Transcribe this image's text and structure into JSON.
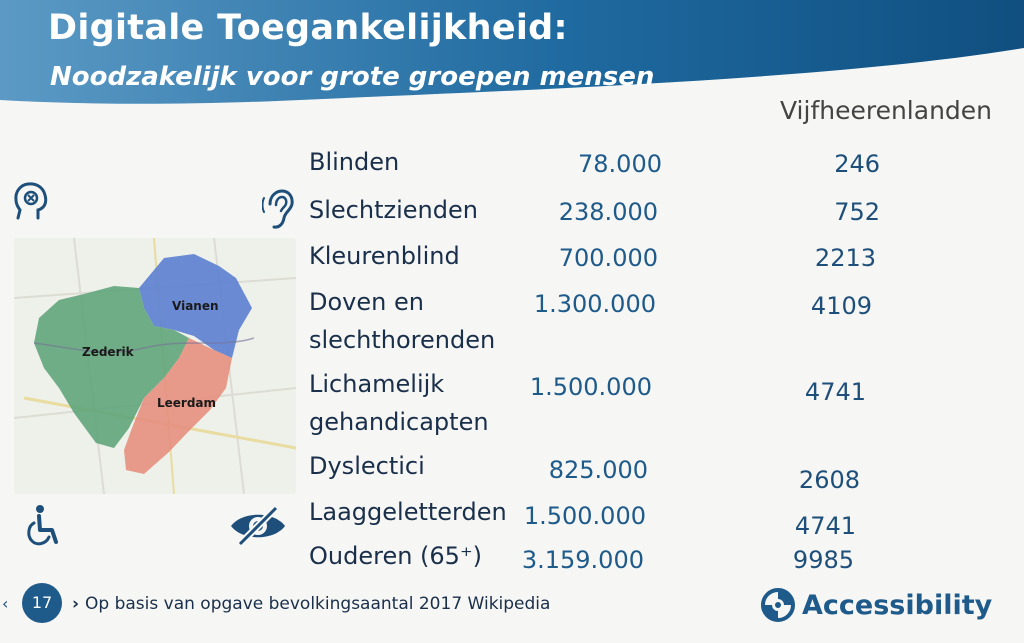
{
  "header": {
    "title": "Digitale Toegankelijkheid:",
    "subtitle": "Noodzakelijk voor grote groepen mensen",
    "region_column": "Vijfheerenlanden"
  },
  "map": {
    "labels": [
      "Vianen",
      "Zederik",
      "Leerdam"
    ],
    "colors": {
      "vianen": "#5b7fd0",
      "zederik": "#5fa57a",
      "leerdam": "#e58f80"
    }
  },
  "rows": [
    {
      "label_lines": [
        "Blinden"
      ],
      "national": "78.000",
      "region": "246"
    },
    {
      "label_lines": [
        "Slechtzienden"
      ],
      "national": "238.000",
      "region": "752"
    },
    {
      "label_lines": [
        "Kleurenblind"
      ],
      "national": "700.000",
      "region": "2213"
    },
    {
      "label_lines": [
        "Doven en",
        "slechthorenden"
      ],
      "national": "1.300.000",
      "region": "4109"
    },
    {
      "label_lines": [
        "Lichamelijk",
        "gehandicapten"
      ],
      "national": "1.500.000",
      "region": "4741"
    },
    {
      "label_lines": [
        "Dyslectici"
      ],
      "national": "825.000",
      "region": "2608"
    },
    {
      "label_lines": [
        "Laaggeletterden"
      ],
      "national": "1.500.000",
      "region": "4741"
    },
    {
      "label_lines": [
        "Ouderen (65⁺)"
      ],
      "national": "3.159.000",
      "region": "9985"
    }
  ],
  "icons": [
    "head-cognitive-icon",
    "ear-icon",
    "wheelchair-icon",
    "eye-crossed-icon"
  ],
  "footer": {
    "page_number": "17",
    "note": "Op basis van opgave bevolkingsaantal 2017 Wikipedia",
    "brand": "Accessibility"
  },
  "colors": {
    "header_blue": "#1e5a8a",
    "text_dark": "#1a2f4a",
    "number_blue": "#1e5a8a"
  }
}
